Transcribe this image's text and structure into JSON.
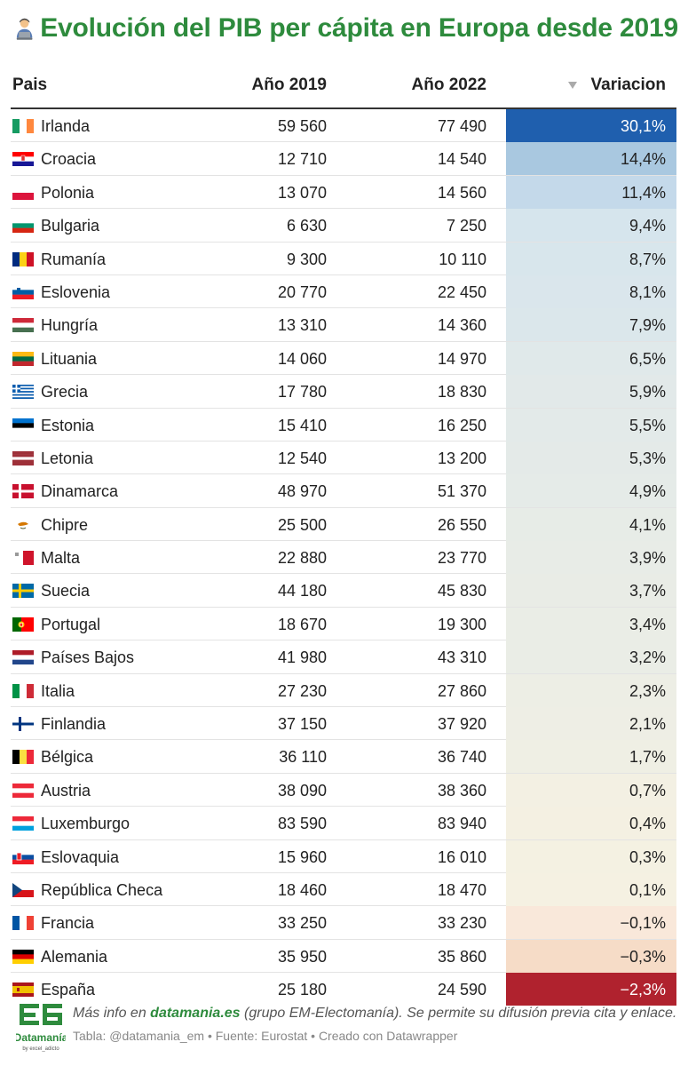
{
  "title": "Evolución del PIB per cápita en Europa desde 2019",
  "title_icon": "person-with-laptop-emoji",
  "columns": {
    "country": "Pais",
    "year1": "Año 2019",
    "year2": "Año 2022",
    "change": "Variacion"
  },
  "sort_icon": "sort-descending-triangle-icon",
  "colors": {
    "title": "#2e8b3d",
    "max_positive": "#1f5fae",
    "max_negative": "#b0222e"
  },
  "chart_data": {
    "type": "table",
    "title": "Evolución del PIB per cápita en Europa desde 2019",
    "columns": [
      "Pais",
      "Año 2019",
      "Año 2022",
      "Variacion"
    ],
    "rows": [
      {
        "country": "Irlanda",
        "flag": "ireland-flag-icon",
        "y2019": "59 560",
        "y2022": "77 490",
        "change": 30.1,
        "change_label": "30,1%"
      },
      {
        "country": "Croacia",
        "flag": "croatia-flag-icon",
        "y2019": "12 710",
        "y2022": "14 540",
        "change": 14.4,
        "change_label": "14,4%"
      },
      {
        "country": "Polonia",
        "flag": "poland-flag-icon",
        "y2019": "13 070",
        "y2022": "14 560",
        "change": 11.4,
        "change_label": "11,4%"
      },
      {
        "country": "Bulgaria",
        "flag": "bulgaria-flag-icon",
        "y2019": "6 630",
        "y2022": "7 250",
        "change": 9.4,
        "change_label": "9,4%"
      },
      {
        "country": "Rumanía",
        "flag": "romania-flag-icon",
        "y2019": "9 300",
        "y2022": "10 110",
        "change": 8.7,
        "change_label": "8,7%"
      },
      {
        "country": "Eslovenia",
        "flag": "slovenia-flag-icon",
        "y2019": "20 770",
        "y2022": "22 450",
        "change": 8.1,
        "change_label": "8,1%"
      },
      {
        "country": "Hungría",
        "flag": "hungary-flag-icon",
        "y2019": "13 310",
        "y2022": "14 360",
        "change": 7.9,
        "change_label": "7,9%"
      },
      {
        "country": "Lituania",
        "flag": "lithuania-flag-icon",
        "y2019": "14 060",
        "y2022": "14 970",
        "change": 6.5,
        "change_label": "6,5%"
      },
      {
        "country": "Grecia",
        "flag": "greece-flag-icon",
        "y2019": "17 780",
        "y2022": "18 830",
        "change": 5.9,
        "change_label": "5,9%"
      },
      {
        "country": "Estonia",
        "flag": "estonia-flag-icon",
        "y2019": "15 410",
        "y2022": "16 250",
        "change": 5.5,
        "change_label": "5,5%"
      },
      {
        "country": "Letonia",
        "flag": "latvia-flag-icon",
        "y2019": "12 540",
        "y2022": "13 200",
        "change": 5.3,
        "change_label": "5,3%"
      },
      {
        "country": "Dinamarca",
        "flag": "denmark-flag-icon",
        "y2019": "48 970",
        "y2022": "51 370",
        "change": 4.9,
        "change_label": "4,9%"
      },
      {
        "country": "Chipre",
        "flag": "cyprus-flag-icon",
        "y2019": "25 500",
        "y2022": "26 550",
        "change": 4.1,
        "change_label": "4,1%"
      },
      {
        "country": "Malta",
        "flag": "malta-flag-icon",
        "y2019": "22 880",
        "y2022": "23 770",
        "change": 3.9,
        "change_label": "3,9%"
      },
      {
        "country": "Suecia",
        "flag": "sweden-flag-icon",
        "y2019": "44 180",
        "y2022": "45 830",
        "change": 3.7,
        "change_label": "3,7%"
      },
      {
        "country": "Portugal",
        "flag": "portugal-flag-icon",
        "y2019": "18 670",
        "y2022": "19 300",
        "change": 3.4,
        "change_label": "3,4%"
      },
      {
        "country": "Países Bajos",
        "flag": "netherlands-flag-icon",
        "y2019": "41 980",
        "y2022": "43 310",
        "change": 3.2,
        "change_label": "3,2%"
      },
      {
        "country": "Italia",
        "flag": "italy-flag-icon",
        "y2019": "27 230",
        "y2022": "27 860",
        "change": 2.3,
        "change_label": "2,3%"
      },
      {
        "country": "Finlandia",
        "flag": "finland-flag-icon",
        "y2019": "37 150",
        "y2022": "37 920",
        "change": 2.1,
        "change_label": "2,1%"
      },
      {
        "country": "Bélgica",
        "flag": "belgium-flag-icon",
        "y2019": "36 110",
        "y2022": "36 740",
        "change": 1.7,
        "change_label": "1,7%"
      },
      {
        "country": "Austria",
        "flag": "austria-flag-icon",
        "y2019": "38 090",
        "y2022": "38 360",
        "change": 0.7,
        "change_label": "0,7%"
      },
      {
        "country": "Luxemburgo",
        "flag": "luxembourg-flag-icon",
        "y2019": "83 590",
        "y2022": "83 940",
        "change": 0.4,
        "change_label": "0,4%"
      },
      {
        "country": "Eslovaquia",
        "flag": "slovakia-flag-icon",
        "y2019": "15 960",
        "y2022": "16 010",
        "change": 0.3,
        "change_label": "0,3%"
      },
      {
        "country": "República Checa",
        "flag": "czechia-flag-icon",
        "y2019": "18 460",
        "y2022": "18 470",
        "change": 0.1,
        "change_label": "0,1%"
      },
      {
        "country": "Francia",
        "flag": "france-flag-icon",
        "y2019": "33 250",
        "y2022": "33 230",
        "change": -0.1,
        "change_label": "−0,1%"
      },
      {
        "country": "Alemania",
        "flag": "germany-flag-icon",
        "y2019": "35 950",
        "y2022": "35 860",
        "change": -0.3,
        "change_label": "−0,3%"
      },
      {
        "country": "España",
        "flag": "spain-flag-icon",
        "y2019": "25 180",
        "y2022": "24 590",
        "change": -2.3,
        "change_label": "−2,3%"
      }
    ]
  },
  "footer": {
    "logo_text": "Datamanía",
    "logo_sub": "by excel_adicto",
    "line1_prefix": "Más info en",
    "line1_link": "datamania.es",
    "line1_suffix": "(grupo EM-Electomanía). Se permite su difusión previa cita y enlace.",
    "line2": "Tabla: @datamania_em • Fuente: Eurostat • Creado con Datawrapper"
  }
}
